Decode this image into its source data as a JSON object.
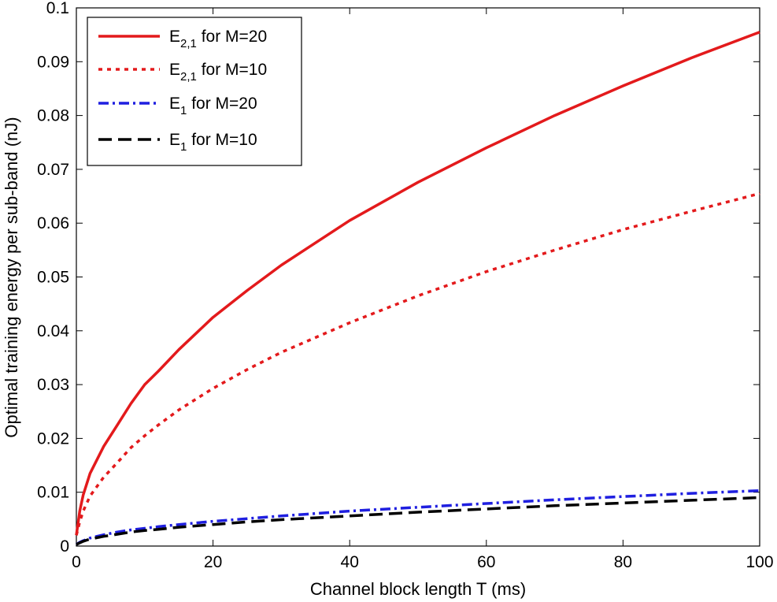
{
  "chart_data": {
    "type": "line",
    "title": "",
    "xlabel": "Channel block length T (ms)",
    "ylabel": "Optimal training energy per sub-band  (nJ)",
    "xlim": [
      0,
      100
    ],
    "ylim": [
      0,
      0.1
    ],
    "xticks": [
      0,
      20,
      40,
      60,
      80,
      100
    ],
    "xtick_labels": [
      "0",
      "20",
      "40",
      "60",
      "80",
      "100"
    ],
    "yticks": [
      0,
      0.01,
      0.02,
      0.03,
      0.04,
      0.05,
      0.06,
      0.07,
      0.08,
      0.09,
      0.1
    ],
    "ytick_labels": [
      "0",
      "0.01",
      "0.02",
      "0.03",
      "0.04",
      "0.05",
      "0.06",
      "0.07",
      "0.08",
      "0.09",
      "0.1"
    ],
    "grid": false,
    "legend_position": "top-left",
    "x": [
      0,
      0.5,
      1,
      2,
      4,
      6,
      8,
      10,
      12,
      15,
      20,
      25,
      30,
      40,
      50,
      60,
      70,
      80,
      90,
      100
    ],
    "series": [
      {
        "name": "E2,1 for M=20",
        "legend_main": "E",
        "legend_sub": "2,1",
        "legend_rest": " for M=20",
        "color": "#e31a1c",
        "style": "solid",
        "values": [
          0.002,
          0.0065,
          0.0095,
          0.0135,
          0.0185,
          0.0225,
          0.0265,
          0.03,
          0.0325,
          0.0365,
          0.0425,
          0.0475,
          0.0522,
          0.0605,
          0.0676,
          0.074,
          0.08,
          0.0855,
          0.0907,
          0.0955
        ]
      },
      {
        "name": "E2,1 for M=10",
        "legend_main": "E",
        "legend_sub": "2,1",
        "legend_rest": " for M=10",
        "color": "#e31a1c",
        "style": "dotted",
        "values": [
          0.002,
          0.0045,
          0.0065,
          0.0093,
          0.0128,
          0.0155,
          0.0183,
          0.0205,
          0.0225,
          0.0253,
          0.0293,
          0.0328,
          0.036,
          0.0415,
          0.0465,
          0.051,
          0.055,
          0.0588,
          0.0622,
          0.0655
        ]
      },
      {
        "name": "E1 for M=20",
        "legend_main": "E",
        "legend_sub": "1",
        "legend_rest": " for M=20",
        "color": "#1f1fe0",
        "style": "dashdot",
        "values": [
          0.0003,
          0.0007,
          0.001,
          0.0015,
          0.0021,
          0.0026,
          0.003,
          0.0033,
          0.0036,
          0.004,
          0.0046,
          0.0051,
          0.0056,
          0.0065,
          0.0072,
          0.0079,
          0.0086,
          0.0092,
          0.0098,
          0.0103
        ]
      },
      {
        "name": "E1 for M=10",
        "legend_main": "E",
        "legend_sub": "1",
        "legend_rest": " for M=10",
        "color": "#000000",
        "style": "dashed",
        "values": [
          0.0003,
          0.0006,
          0.0009,
          0.0013,
          0.0018,
          0.0022,
          0.0026,
          0.0029,
          0.0031,
          0.0035,
          0.004,
          0.0045,
          0.0049,
          0.0056,
          0.0063,
          0.0069,
          0.0075,
          0.008,
          0.0085,
          0.009
        ]
      }
    ]
  }
}
